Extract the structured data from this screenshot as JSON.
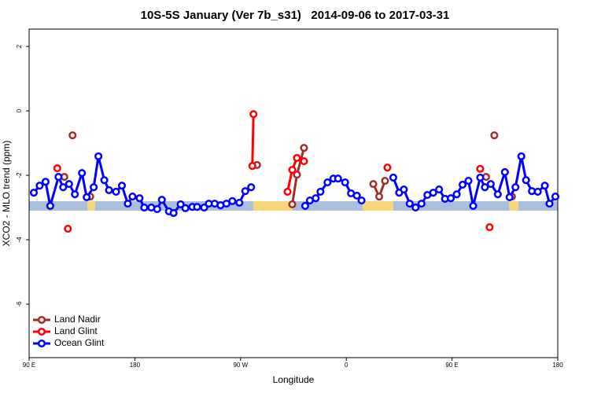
{
  "chart_data": {
    "type": "line",
    "title": "10S-5S January (Ver 7b_s31)   2014-09-06 to 2017-03-31",
    "x_label": "Longitude",
    "y_label": "XCO2 - MLO trend (ppm)",
    "xlim": [
      90,
      540
    ],
    "xticks": [
      {
        "value": 90,
        "label": "90 E"
      },
      180,
      {
        "value": 270,
        "label": "90 W"
      },
      {
        "value": 360,
        "label": "0"
      },
      {
        "value": 450,
        "label": "90 E"
      },
      {
        "value": 540,
        "label": "180"
      }
    ],
    "ylim": [
      -7.66,
      2.54
    ],
    "yticks": [
      -6,
      -4,
      -2,
      0,
      2
    ],
    "legend": "bottom-left",
    "series": [
      {
        "name": "Land Nadir",
        "color": "#a52a2a",
        "x": [
          120,
          null,
          127,
          null,
          142,
          null,
          284,
          null,
          314,
          318,
          324,
          null,
          383,
          388,
          393,
          null,
          479,
          null,
          486,
          null,
          501
        ],
        "values": [
          -2.05,
          null,
          -0.76,
          null,
          -2.66,
          null,
          -1.68,
          null,
          -2.9,
          -1.98,
          -1.15,
          null,
          -2.27,
          -2.66,
          -2.17,
          null,
          -2.05,
          null,
          -0.76,
          null,
          -2.66
        ]
      },
      {
        "name": "Land Glint",
        "color": "#ff0000",
        "x": [
          114,
          null,
          123,
          null,
          280,
          281,
          null,
          310,
          314,
          318,
          324,
          null,
          395,
          null,
          474,
          null,
          482
        ],
        "values": [
          -1.78,
          null,
          -3.66,
          null,
          -1.71,
          -0.1,
          null,
          -2.51,
          -1.83,
          -1.46,
          -1.56,
          null,
          -1.76,
          null,
          -1.8,
          null,
          -3.61
        ]
      },
      {
        "name": "Ocean Glint",
        "color": "#0000ff",
        "x": [
          94,
          99,
          104,
          108,
          115,
          119,
          124,
          129,
          135,
          139,
          145,
          149,
          154,
          158,
          164,
          169,
          174,
          178,
          184,
          188,
          194,
          199,
          203,
          209,
          213,
          219,
          223,
          229,
          233,
          239,
          243,
          248,
          253,
          258,
          263,
          269,
          274,
          279,
          null,
          325,
          329,
          334,
          338,
          344,
          349,
          353,
          359,
          364,
          369,
          373,
          null,
          400,
          405,
          409,
          414,
          419,
          424,
          429,
          434,
          439,
          444,
          449,
          454,
          459,
          464,
          468,
          474,
          478,
          483,
          489,
          495,
          499,
          504,
          509,
          513,
          518,
          523,
          529,
          533,
          538
        ],
        "values": [
          -2.54,
          -2.32,
          -2.2,
          -2.95,
          -2.05,
          -2.37,
          -2.27,
          -2.59,
          -1.93,
          -2.68,
          -2.37,
          -1.41,
          -2.15,
          -2.46,
          -2.51,
          -2.32,
          -2.88,
          -2.66,
          -2.71,
          -3.0,
          -3.0,
          -3.05,
          -2.76,
          -3.12,
          -3.17,
          -2.9,
          -3.02,
          -2.98,
          -2.98,
          -3.0,
          -2.88,
          -2.88,
          -2.93,
          -2.88,
          -2.8,
          -2.85,
          -2.49,
          -2.37,
          null,
          -2.95,
          -2.78,
          -2.71,
          -2.51,
          -2.22,
          -2.1,
          -2.1,
          -2.22,
          -2.56,
          -2.63,
          -2.78,
          null,
          -2.07,
          -2.54,
          -2.44,
          -2.88,
          -3.0,
          -2.88,
          -2.61,
          -2.54,
          -2.44,
          -2.73,
          -2.71,
          -2.59,
          -2.29,
          -2.17,
          -2.95,
          -2.07,
          -2.37,
          -2.27,
          -2.59,
          -1.9,
          -2.68,
          -2.37,
          -1.41,
          -2.15,
          -2.49,
          -2.51,
          -2.32,
          -2.88,
          -2.66
        ]
      }
    ]
  }
}
